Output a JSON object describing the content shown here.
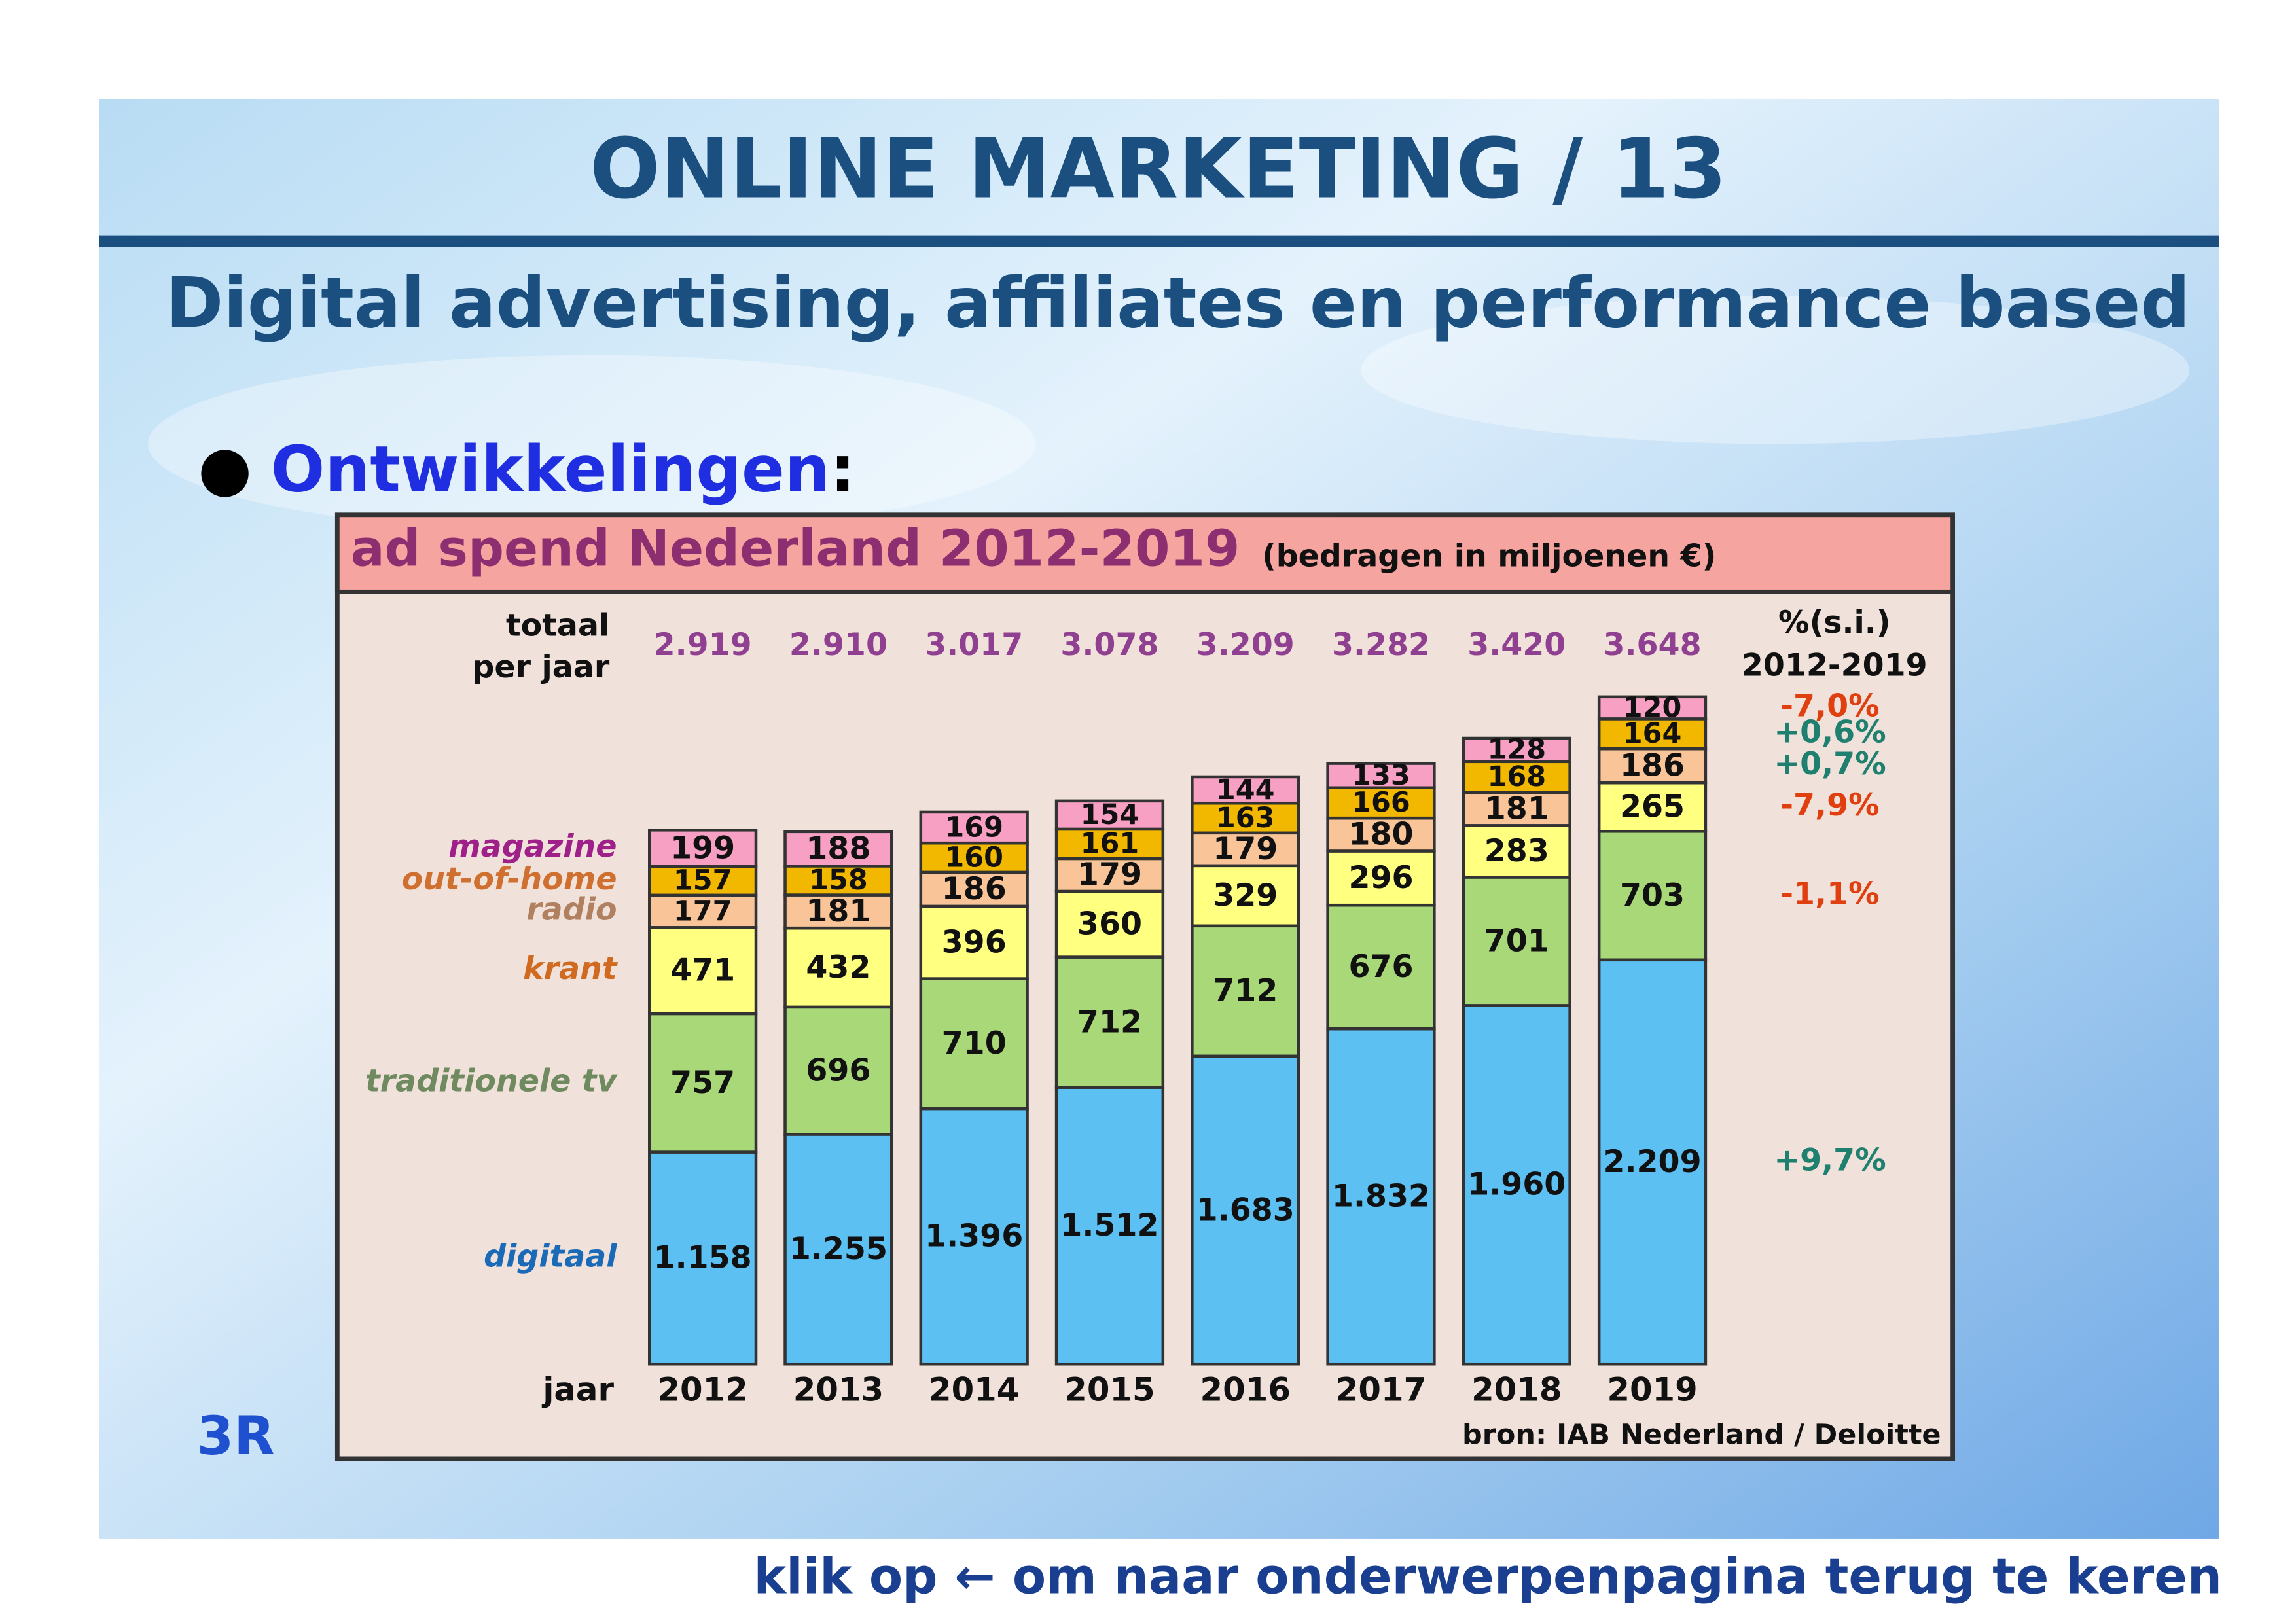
{
  "slide": {
    "title": "ONLINE MARKETING / 13",
    "subtitle": "Digital advertising, affiliates en performance based",
    "bullet": "Ontwikkelingen",
    "bullet_colon": ":",
    "logo": "3R",
    "footer": "klik op ← om naar onderwerpenpagina terug te keren"
  },
  "chart_data": {
    "type": "stacked_bar",
    "title": "ad spend Nederland 2012-2019",
    "subtitle": "(bedragen in miljoenen €)",
    "total_label": [
      "totaal",
      "per jaar"
    ],
    "growth_header": [
      "%(s.i.)",
      "2012-2019"
    ],
    "x_label": "jaar",
    "source": "bron: IAB Nederland / Deloitte",
    "categories": [
      "2012",
      "2013",
      "2014",
      "2015",
      "2016",
      "2017",
      "2018",
      "2019"
    ],
    "total_values": [
      2919,
      2910,
      3017,
      3078,
      3209,
      3282,
      3420,
      3648
    ],
    "total_value_labels": [
      "2.919",
      "2.910",
      "3.017",
      "3.078",
      "3.209",
      "3.282",
      "3.420",
      "3.648"
    ],
    "series": [
      {
        "name": "digitaal",
        "color": "#5cc0f2",
        "label_color": "#1a6ab8",
        "values": [
          1158,
          1255,
          1396,
          1512,
          1683,
          1832,
          1960,
          2209
        ],
        "value_labels": [
          "1.158",
          "1.255",
          "1.396",
          "1.512",
          "1.683",
          "1.832",
          "1.960",
          "2.209"
        ],
        "growth": 9.7,
        "growth_label": "+9,7%"
      },
      {
        "name": "traditionele tv",
        "color": "#a8d878",
        "label_color": "#708a60",
        "values": [
          757,
          696,
          710,
          712,
          712,
          676,
          701,
          703
        ],
        "growth": -1.1,
        "growth_label": "-1,1%"
      },
      {
        "name": "krant",
        "color": "#ffff80",
        "label_color": "#d06a20",
        "values": [
          471,
          432,
          396,
          360,
          329,
          296,
          283,
          265
        ],
        "growth": -7.9,
        "growth_label": "-7,9%"
      },
      {
        "name": "radio",
        "color": "#f8c498",
        "label_color": "#b08060",
        "values": [
          177,
          181,
          186,
          179,
          179,
          180,
          181,
          186
        ],
        "growth": 0.7,
        "growth_label": "+0,7%"
      },
      {
        "name": "out-of-home",
        "color": "#f2b800",
        "label_color": "#d07030",
        "values": [
          157,
          158,
          160,
          161,
          163,
          166,
          168,
          164
        ],
        "growth": 0.6,
        "growth_label": "+0,6%"
      },
      {
        "name": "magazine",
        "color": "#f8a0c4",
        "label_color": "#a0208a",
        "values": [
          199,
          188,
          169,
          154,
          144,
          133,
          128,
          120
        ],
        "growth": -7.0,
        "growth_label": "-7,0%"
      }
    ]
  }
}
